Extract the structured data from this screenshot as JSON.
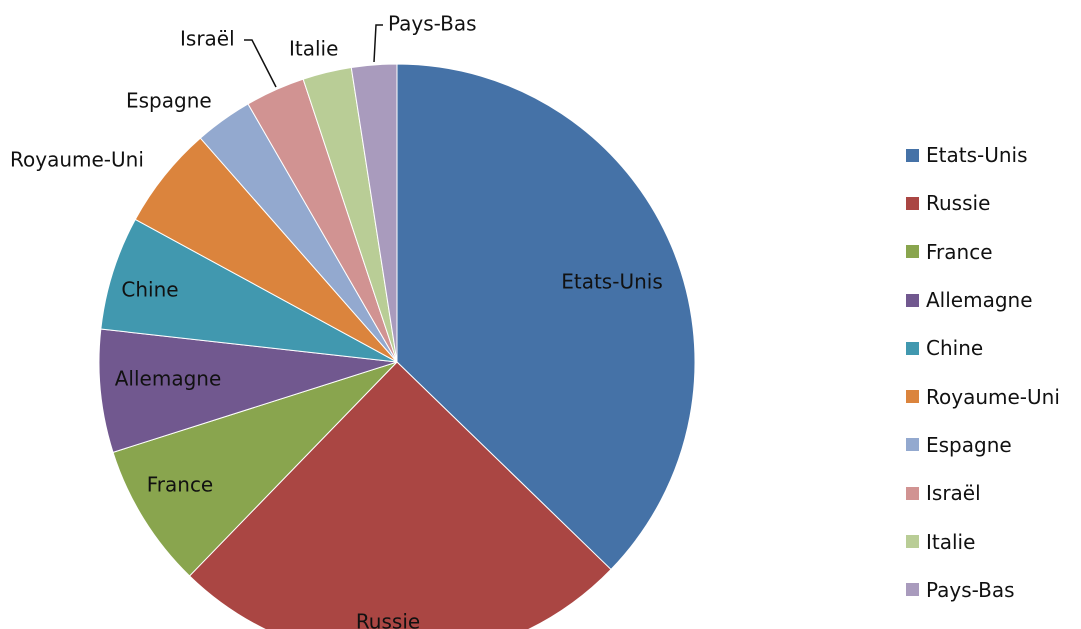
{
  "chart_data": {
    "type": "pie",
    "categories": [
      "Etats-Unis",
      "Russie",
      "France",
      "Allemagne",
      "Chine",
      "Royaume-Uni",
      "Espagne",
      "Israël",
      "Italie",
      "Pays-Bas"
    ],
    "values": [
      38.0,
      25.5,
      8.0,
      6.8,
      6.3,
      5.7,
      3.2,
      3.3,
      2.7,
      2.5
    ],
    "colors": [
      "#4572A7",
      "#AA4643",
      "#89A54E",
      "#71588F",
      "#4198AF",
      "#DB843D",
      "#93A9CF",
      "#D19392",
      "#B9CD96",
      "#A99BBD"
    ],
    "legend": {
      "position": "right"
    },
    "title": ""
  }
}
